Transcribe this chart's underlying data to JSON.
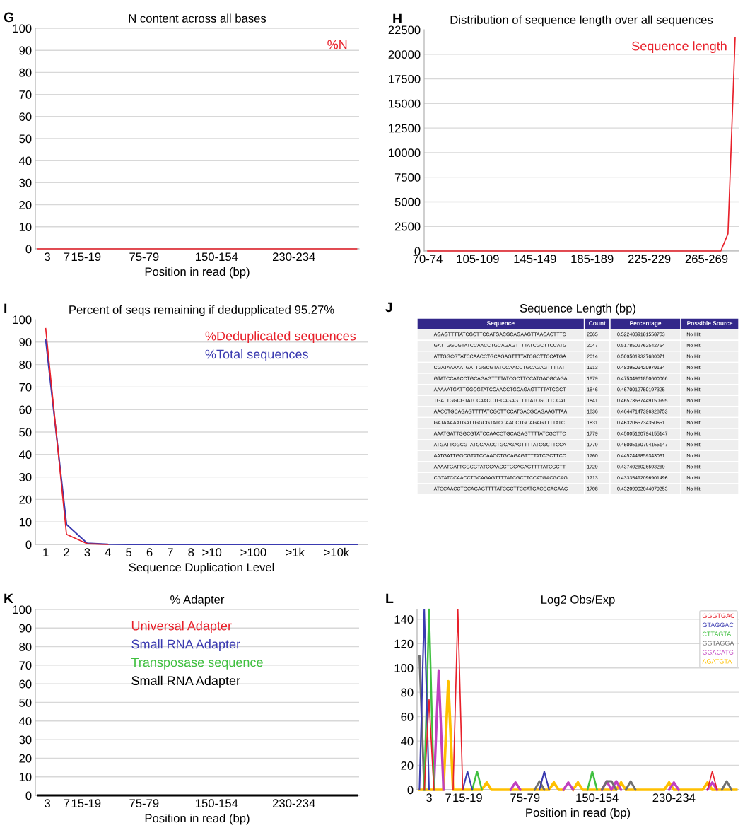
{
  "chart_data": [
    {
      "type": "line",
      "title": "N content across all bases",
      "xlabel": "Position in read (bp)",
      "annotations": [
        "G"
      ],
      "legend": "top right",
      "grid": "y",
      "ylim": [
        0,
        100
      ],
      "yticks": [
        0,
        10,
        20,
        30,
        40,
        50,
        60,
        70,
        80,
        90,
        100
      ],
      "categories": [
        null,
        null,
        "3",
        null,
        null,
        null,
        "7",
        null,
        null,
        null,
        "15-19",
        null,
        null,
        null,
        null,
        null,
        null,
        null,
        null,
        null,
        null,
        null,
        "75-79",
        null,
        null,
        null,
        null,
        null,
        null,
        null,
        null,
        null,
        null,
        null,
        null,
        null,
        null,
        "150-154",
        null,
        null,
        null,
        null,
        null,
        null,
        null,
        null,
        null,
        null,
        null,
        null,
        null,
        null,
        null,
        "230-234",
        null,
        null,
        null,
        null,
        null,
        null,
        null,
        null,
        null,
        null,
        null,
        null,
        null
      ],
      "series": [
        {
          "name": "%N",
          "color": "#e8202a",
          "values": [
            0,
            0,
            0,
            0,
            0,
            0,
            0,
            0,
            0,
            0,
            0,
            0,
            0,
            0,
            0,
            0,
            0,
            0,
            0,
            0,
            0,
            0,
            0,
            0,
            0,
            0,
            0,
            0,
            0,
            0,
            0,
            0,
            0,
            0,
            0,
            0,
            0,
            0,
            0,
            0,
            0,
            0,
            0,
            0,
            0,
            0,
            0,
            0,
            0,
            0,
            0,
            0,
            0,
            0,
            0,
            0,
            0,
            0,
            0,
            0,
            0,
            0,
            0,
            0,
            0,
            0,
            0
          ]
        }
      ]
    },
    {
      "type": "line",
      "title": "Distribution of sequence length over all sequences",
      "annotations": [
        "H"
      ],
      "legend": "top right",
      "grid": "y",
      "ylim": [
        0,
        22500
      ],
      "yticks": [
        0,
        2500,
        5000,
        7500,
        10000,
        12500,
        15000,
        17500,
        20000,
        22500
      ],
      "categories": [
        "70-74",
        null,
        null,
        null,
        null,
        null,
        null,
        "105-109",
        null,
        null,
        null,
        null,
        null,
        null,
        null,
        "145-149",
        null,
        null,
        null,
        null,
        null,
        null,
        null,
        "185-189",
        null,
        null,
        null,
        null,
        null,
        null,
        null,
        "225-229",
        null,
        null,
        null,
        null,
        null,
        null,
        null,
        "265-269",
        null,
        null,
        null,
        null
      ],
      "series": [
        {
          "name": "Sequence length",
          "color": "#e8202a",
          "values": [
            0,
            0,
            0,
            0,
            0,
            0,
            0,
            0,
            0,
            0,
            0,
            0,
            0,
            0,
            0,
            0,
            0,
            0,
            0,
            0,
            0,
            0,
            0,
            0,
            0,
            0,
            0,
            0,
            0,
            0,
            0,
            0,
            0,
            0,
            0,
            0,
            0,
            0,
            0,
            0,
            0,
            0,
            1750,
            21700
          ]
        }
      ]
    },
    {
      "type": "line",
      "title": "Percent of seqs remaining if dedupplicated 95.27%",
      "xlabel": "Sequence Duplication Level",
      "annotations": [
        "I"
      ],
      "legend": "top right",
      "grid": "y",
      "ylim": [
        0,
        100
      ],
      "yticks": [
        0,
        10,
        20,
        30,
        40,
        50,
        60,
        70,
        80,
        90,
        100
      ],
      "categories": [
        "1",
        "2",
        "3",
        "4",
        "5",
        "6",
        "7",
        "8",
        ">10",
        null,
        ">100",
        null,
        ">1k",
        null,
        ">10k",
        null
      ],
      "series": [
        {
          "name": "%Deduplicated sequences",
          "color": "#e8202a",
          "values": [
            96,
            4.5,
            0.3,
            0,
            null,
            null,
            null,
            null,
            null,
            null,
            null,
            null,
            null,
            null,
            null,
            null
          ]
        },
        {
          "name": "%Total sequences",
          "color": "#3a3ab0",
          "values": [
            91,
            8.9,
            0.5,
            0.1,
            0,
            0,
            0,
            0,
            0,
            0,
            0,
            0,
            0,
            0,
            0,
            0
          ]
        }
      ]
    },
    {
      "type": "other",
      "title": "Sequence Length (bp)",
      "annotations": [
        "J"
      ],
      "color": "#33288a",
      "categories": [
        "Sequence",
        "Count",
        "Percentage",
        "Possible Source"
      ],
      "cell_labels": [
        [
          "AGAGTTTTATCGCTTCCATGACGCAGAAGTTAACACTTTC",
          "2065",
          "0.5224039181558763",
          "No Hit"
        ],
        [
          "GATTGGCGTATCCAACCTGCAGAGTTTTATCGCTTCCATG",
          "2047",
          "0.5178502762542754",
          "No Hit"
        ],
        [
          "ATTGGCGTATCCAACCTGCAGAGTTTTATCGCTTCCATGA",
          "2014",
          "0.5095019327680071",
          "No Hit"
        ],
        [
          "CGATAAAAATGATTGGCGTATCCAACCTGCAGAGTTTTAT",
          "1913",
          "0.4839509420979134",
          "No Hit"
        ],
        [
          "GTATCCAACCTGCAGAGTTTTATCGCTTCCATGACGCAGA",
          "1879",
          "0.47534961850600066",
          "No Hit"
        ],
        [
          "AAAAATGATTGGCGTATCCAACCTGCAGAGTTTTATCGCT",
          "1846",
          "0.4670012750197325",
          "No Hit"
        ],
        [
          "TGATTGGCGTATCCAACCTGCAGAGTTTTATCGCTTCCAT",
          "1841",
          "0.46573637449150995",
          "No Hit"
        ],
        [
          "AACCTGCAGAGTTTTATCGCTTCCATGACGCAGAAGTTAA",
          "1836",
          "0.46447147396328753",
          "No Hit"
        ],
        [
          "GATAAAAATGATTGGCGTATCCAACCTGCAGAGTTTTATC",
          "1831",
          "0.4632065734350651",
          "No Hit"
        ],
        [
          "AAATGATTGGCGTATCCAACCTGCAGAGTTTTATCGCTTC",
          "1779",
          "0.45005160794155147",
          "No Hit"
        ],
        [
          "ATGATTGGCGTATCCAACCTGCAGAGTTTTATCGCTTCCA",
          "1779",
          "0.45005160794155147",
          "No Hit"
        ],
        [
          "AATGATTGGCGTATCCAACCTGCAGAGTTTTATCGCTTCC",
          "1760",
          "0.4452449859343061",
          "No Hit"
        ],
        [
          "AAAATGATTGGCGTATCCAACCTGCAGAGTTTTATCGCTT",
          "1729",
          "0.4374026026593269",
          "No Hit"
        ],
        [
          "CGTATCCAACCTGCAGAGTTTTATCGCTTCCATGACGCAG",
          "1713",
          "0.43335492096901496",
          "No Hit"
        ],
        [
          "ATCCAACCTGCAGAGTTTTATCGCTTCCATGACGCAGAAG",
          "1708",
          "0.43209002044079253",
          "No Hit"
        ]
      ]
    },
    {
      "type": "line",
      "title": "% Adapter",
      "xlabel": "Position in read (bp)",
      "annotations": [
        "K"
      ],
      "legend": "top",
      "grid": "y",
      "ylim": [
        0,
        100
      ],
      "yticks": [
        0,
        10,
        20,
        30,
        40,
        50,
        60,
        70,
        80,
        90,
        100
      ],
      "categories": [
        null,
        null,
        "3",
        null,
        null,
        null,
        "7",
        null,
        null,
        null,
        "15-19",
        null,
        null,
        null,
        null,
        null,
        null,
        null,
        null,
        null,
        null,
        null,
        "75-79",
        null,
        null,
        null,
        null,
        null,
        null,
        null,
        null,
        null,
        null,
        null,
        null,
        null,
        null,
        "150-154",
        null,
        null,
        null,
        null,
        null,
        null,
        null,
        null,
        null,
        null,
        null,
        null,
        null,
        null,
        null,
        "230-234",
        null,
        null,
        null,
        null,
        null,
        null,
        null,
        null,
        null,
        null,
        null,
        null,
        null
      ],
      "series": [
        {
          "name": "Universal Adapter",
          "color": "#e8202a",
          "values": [
            null,
            null,
            null,
            null,
            null,
            null,
            null,
            null,
            null,
            null,
            null,
            null,
            null,
            null,
            null,
            null,
            null,
            null,
            null,
            null,
            null,
            null,
            null,
            null,
            null,
            null,
            null,
            null,
            null,
            null,
            null,
            null,
            null,
            null,
            null,
            null,
            null,
            null,
            null,
            null,
            null,
            null,
            null,
            null,
            null,
            null,
            null,
            null,
            null,
            null,
            null,
            null,
            null,
            null,
            null,
            null,
            null,
            null,
            null,
            null,
            null,
            null,
            null,
            null,
            null,
            null,
            null
          ]
        },
        {
          "name": "Small RNA Adapter",
          "color": "#3a3ab0",
          "values": [
            null,
            null,
            null,
            null,
            null,
            null,
            null,
            null,
            null,
            null,
            null,
            null,
            null,
            null,
            null,
            null,
            null,
            null,
            null,
            null,
            null,
            null,
            null,
            null,
            null,
            null,
            null,
            null,
            null,
            null,
            null,
            null,
            null,
            null,
            null,
            null,
            null,
            null,
            null,
            null,
            null,
            null,
            null,
            null,
            null,
            null,
            null,
            null,
            null,
            null,
            null,
            null,
            null,
            null,
            null,
            null,
            null,
            null,
            null,
            null,
            null,
            null,
            null,
            null,
            null,
            null,
            null
          ]
        },
        {
          "name": "Transposase sequence",
          "color": "#40c040",
          "values": [
            null,
            null,
            null,
            null,
            null,
            null,
            null,
            null,
            null,
            null,
            null,
            null,
            null,
            null,
            null,
            null,
            null,
            null,
            null,
            null,
            null,
            null,
            null,
            null,
            null,
            null,
            null,
            null,
            null,
            null,
            null,
            null,
            null,
            null,
            null,
            null,
            null,
            null,
            null,
            null,
            null,
            null,
            null,
            null,
            null,
            null,
            null,
            null,
            null,
            null,
            null,
            null,
            null,
            null,
            null,
            null,
            null,
            null,
            null,
            null,
            null,
            null,
            null,
            null,
            null,
            null,
            null
          ]
        },
        {
          "name": "Small RNA Adapter",
          "color": "#000000",
          "values": [
            0,
            0,
            0,
            0,
            0,
            0,
            0,
            0,
            0,
            0,
            0,
            0,
            0,
            0,
            0,
            0,
            0,
            0,
            0,
            0,
            0,
            0,
            0,
            0,
            0,
            0,
            0,
            0,
            0,
            0,
            0,
            0,
            0,
            0,
            0,
            0,
            0,
            0,
            0,
            0,
            0,
            0,
            0,
            0,
            0,
            0,
            0,
            0,
            0,
            0,
            0,
            0,
            0,
            0,
            0,
            0,
            0,
            0,
            0,
            0,
            0,
            0,
            0,
            0,
            0,
            0,
            0
          ]
        }
      ]
    },
    {
      "type": "line",
      "title": "Log2 Obs/Exp",
      "xlabel": "Position in read (bp)",
      "annotations": [
        "L"
      ],
      "legend": "top right",
      "grid": "y",
      "ylim": [
        0,
        148
      ],
      "yticks": [
        0,
        20,
        40,
        60,
        80,
        100,
        120,
        140
      ],
      "categories": [
        null,
        null,
        "3",
        null,
        null,
        null,
        "7",
        null,
        null,
        null,
        "15-19",
        null,
        null,
        null,
        null,
        null,
        null,
        null,
        null,
        null,
        null,
        null,
        "75-79",
        null,
        null,
        null,
        null,
        null,
        null,
        null,
        null,
        null,
        null,
        null,
        null,
        null,
        null,
        "150-154",
        null,
        null,
        null,
        null,
        null,
        null,
        null,
        null,
        null,
        null,
        null,
        null,
        null,
        null,
        null,
        "230-234",
        null,
        null,
        null,
        null,
        null,
        null,
        null,
        null,
        null,
        null,
        null,
        null,
        null
      ],
      "series": [
        {
          "name": "GGGTGAC",
          "color": "#e8202a",
          "values": [
            null,
            0,
            74,
            0,
            null,
            null,
            null,
            0,
            148,
            0,
            null,
            null,
            null,
            null,
            null,
            null,
            null,
            null,
            null,
            null,
            null,
            null,
            null,
            null,
            null,
            null,
            null,
            null,
            null,
            null,
            null,
            null,
            null,
            null,
            null,
            null,
            null,
            null,
            null,
            null,
            null,
            null,
            null,
            null,
            null,
            null,
            null,
            null,
            null,
            null,
            null,
            null,
            null,
            null,
            null,
            null,
            null,
            null,
            null,
            null,
            0,
            15,
            0,
            null,
            null,
            null,
            null
          ]
        },
        {
          "name": "GTAGGAC",
          "color": "#3a3ab0",
          "values": [
            0,
            148,
            0,
            null,
            null,
            null,
            null,
            null,
            null,
            0,
            15,
            0,
            null,
            null,
            null,
            null,
            null,
            null,
            null,
            null,
            null,
            null,
            null,
            null,
            null,
            0,
            15,
            0,
            null,
            null,
            null,
            null,
            null,
            null,
            null,
            null,
            null,
            null,
            null,
            null,
            null,
            null,
            null,
            null,
            null,
            null,
            null,
            null,
            null,
            null,
            null,
            null,
            null,
            null,
            null,
            null,
            null,
            null,
            null,
            null,
            null,
            null,
            null,
            null,
            null,
            null,
            null
          ]
        },
        {
          "name": "CTTAGTA",
          "color": "#40c040",
          "values": [
            null,
            0,
            148,
            0,
            null,
            null,
            null,
            null,
            null,
            null,
            null,
            0,
            15,
            0,
            null,
            null,
            null,
            null,
            null,
            null,
            null,
            null,
            null,
            null,
            null,
            null,
            null,
            null,
            null,
            null,
            null,
            null,
            null,
            null,
            null,
            0,
            15,
            0,
            null,
            null,
            null,
            null,
            null,
            null,
            null,
            null,
            null,
            null,
            null,
            null,
            null,
            null,
            null,
            null,
            null,
            null,
            null,
            null,
            null,
            null,
            null,
            null,
            null,
            null,
            null,
            null,
            null
          ]
        },
        {
          "name": "GGTAGGA",
          "color": "#707070",
          "values": [
            110,
            0,
            null,
            null,
            null,
            null,
            null,
            null,
            null,
            null,
            null,
            null,
            null,
            null,
            null,
            null,
            null,
            null,
            null,
            null,
            null,
            null,
            null,
            null,
            0,
            7,
            0,
            null,
            null,
            null,
            null,
            null,
            null,
            null,
            null,
            null,
            null,
            null,
            0,
            7,
            7,
            0,
            null,
            0,
            7,
            0,
            null,
            null,
            null,
            null,
            null,
            null,
            null,
            null,
            null,
            null,
            null,
            null,
            null,
            null,
            null,
            null,
            null,
            0,
            7,
            0,
            null
          ]
        },
        {
          "name": "GGACATG",
          "color": "#c040c0",
          "values": [
            null,
            null,
            null,
            0,
            98,
            0,
            null,
            null,
            null,
            null,
            null,
            null,
            null,
            null,
            null,
            null,
            null,
            null,
            null,
            0,
            6,
            0,
            null,
            null,
            null,
            null,
            null,
            null,
            null,
            null,
            0,
            6,
            0,
            null,
            null,
            null,
            null,
            null,
            0,
            7,
            0,
            7,
            0,
            null,
            null,
            null,
            null,
            null,
            null,
            null,
            null,
            null,
            0,
            6,
            0,
            null,
            null,
            null,
            null,
            null,
            0,
            6,
            0,
            null,
            null,
            null,
            null
          ]
        },
        {
          "name": "AGATGTA",
          "color": "#ffc000",
          "values": [
            0,
            0,
            0,
            0,
            0,
            0,
            89,
            0,
            0,
            0,
            0,
            0,
            0,
            0,
            6,
            0,
            0,
            0,
            0,
            0,
            0,
            0,
            0,
            0,
            0,
            0,
            0,
            0,
            6,
            0,
            0,
            null,
            0,
            6,
            0,
            0,
            0,
            0,
            0,
            0,
            0,
            0,
            6,
            0,
            0,
            0,
            0,
            0,
            0,
            0,
            0,
            0,
            6,
            0,
            0,
            0,
            0,
            0,
            0,
            0,
            6,
            0,
            0,
            0,
            0,
            0,
            0
          ]
        }
      ]
    }
  ]
}
